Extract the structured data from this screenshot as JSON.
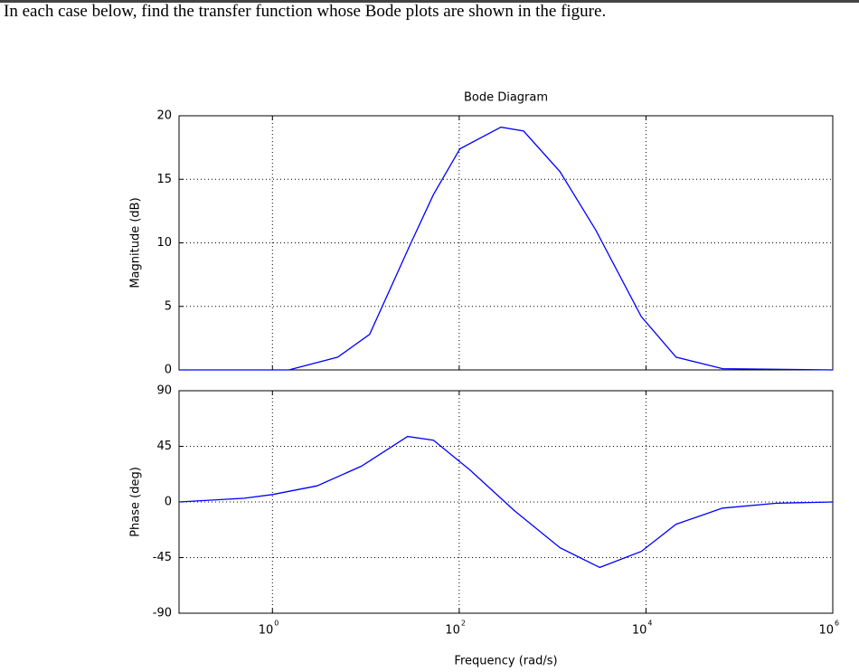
{
  "question": "In each case below, find the transfer function whose Bode plots are shown in the figure.",
  "chart_data": [
    {
      "type": "line",
      "title": "Bode Diagram",
      "y_label": "Magnitude (dB)",
      "log_x": true,
      "grid": true,
      "x": [
        0.1,
        1.5,
        5,
        11,
        30,
        53,
        102,
        280,
        490,
        1200,
        2900,
        8900,
        21000,
        66000,
        1000000
      ],
      "series": [
        {
          "color": "#0000ff",
          "values": [
            0,
            0,
            1.0,
            2.8,
            9.9,
            13.8,
            17.4,
            19.1,
            18.8,
            15.6,
            11,
            4.2,
            1.0,
            0.1,
            0
          ]
        }
      ],
      "xlim": [
        0.1,
        1000000
      ],
      "xticks": [
        1,
        100,
        10000,
        1000000
      ],
      "ylim": [
        0,
        20
      ],
      "yticks": [
        0,
        5,
        10,
        15,
        20
      ]
    },
    {
      "type": "line",
      "y_label": "Phase (deg)",
      "x_label": "Frequency (rad/s)",
      "log_x": true,
      "grid": true,
      "x": [
        0.1,
        0.5,
        1,
        3,
        9,
        28,
        53,
        130,
        390,
        1200,
        3200,
        8900,
        21000,
        66000,
        250000,
        1000000
      ],
      "series": [
        {
          "color": "#0000ff",
          "values": [
            0,
            3,
            6,
            13,
            29,
            53,
            50,
            26,
            -7,
            -37,
            -53,
            -40,
            -18,
            -5,
            -1,
            0
          ]
        }
      ],
      "xlim": [
        0.1,
        1000000
      ],
      "xticks": [
        {
          "value": 1,
          "label": "10",
          "exponent": "0"
        },
        {
          "value": 100,
          "label": "10",
          "exponent": "2"
        },
        {
          "value": 10000,
          "label": "10",
          "exponent": "4"
        },
        {
          "value": 1000000,
          "label": "10",
          "exponent": "6"
        }
      ],
      "ylim": [
        -90,
        90
      ],
      "yticks": [
        -90,
        -45,
        0,
        45,
        90
      ]
    }
  ]
}
